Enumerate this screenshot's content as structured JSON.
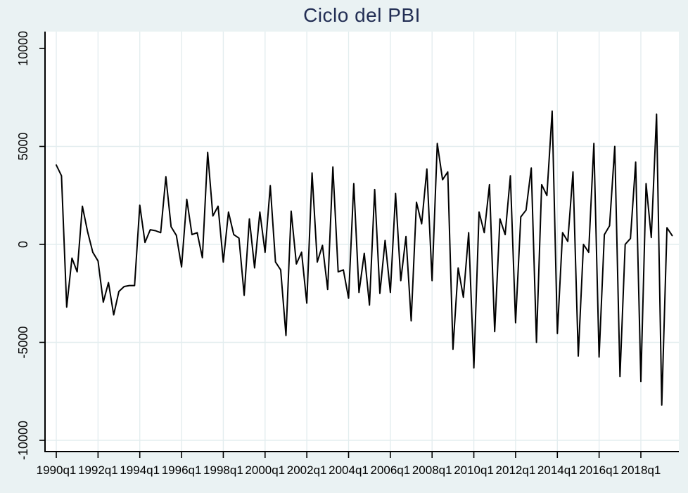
{
  "chart_data": {
    "type": "line",
    "title": "Ciclo del PBI",
    "title_color": "#222e54",
    "background_color": "#eaf2f3",
    "plot_background_color": "#ffffff",
    "grid_color": "#e3edef",
    "axis_color": "#000000",
    "line_color": "#000000",
    "legend": "none",
    "grid": true,
    "frequency": "quarterly",
    "x_start": "1990q1",
    "x_end": "2019q3",
    "x_tick_labels": [
      "1990q1",
      "1992q1",
      "1994q1",
      "1996q1",
      "1998q1",
      "2000q1",
      "2002q1",
      "2004q1",
      "2006q1",
      "2008q1",
      "2010q1",
      "2012q1",
      "2014q1",
      "2016q1",
      "2018q1"
    ],
    "y_tick_labels": [
      "10000",
      "5000",
      "0",
      "-5000",
      "-10000"
    ],
    "y_tick_values": [
      10000,
      5000,
      0,
      -5000,
      -10000
    ],
    "y_gridline_values": [
      5000,
      0,
      -5000,
      -10000
    ],
    "ylim": [
      -10000,
      10000
    ],
    "series": [
      {
        "name": "Ciclo del PBI",
        "values": [
          4050,
          3500,
          -3200,
          -700,
          -1400,
          1950,
          650,
          -400,
          -850,
          -2950,
          -1950,
          -3600,
          -2400,
          -2150,
          -2100,
          -2100,
          2000,
          100,
          750,
          700,
          600,
          3450,
          900,
          460,
          -1150,
          2300,
          500,
          600,
          -680,
          4700,
          1450,
          1950,
          -900,
          1650,
          500,
          320,
          -2600,
          1300,
          -1200,
          1650,
          -400,
          3000,
          -900,
          -1300,
          -4650,
          1700,
          -1000,
          -400,
          -3000,
          3650,
          -900,
          -50,
          -2300,
          3950,
          -1400,
          -1300,
          -2750,
          3100,
          -2450,
          -450,
          -3100,
          2800,
          -2500,
          200,
          -2450,
          2600,
          -1850,
          400,
          -3900,
          2150,
          1050,
          3850,
          -1850,
          5150,
          3300,
          3700,
          -5350,
          -1200,
          -2700,
          600,
          -6300,
          1650,
          600,
          3050,
          -4450,
          1300,
          500,
          3500,
          -4000,
          1400,
          1750,
          3900,
          -5000,
          3050,
          2500,
          6800,
          -4550,
          600,
          150,
          3700,
          -5700,
          0,
          -400,
          5150,
          -5750,
          500,
          950,
          5000,
          -6750,
          0,
          300,
          4200,
          -7000,
          3100,
          350,
          6650,
          -8200,
          850,
          450
        ]
      }
    ]
  }
}
